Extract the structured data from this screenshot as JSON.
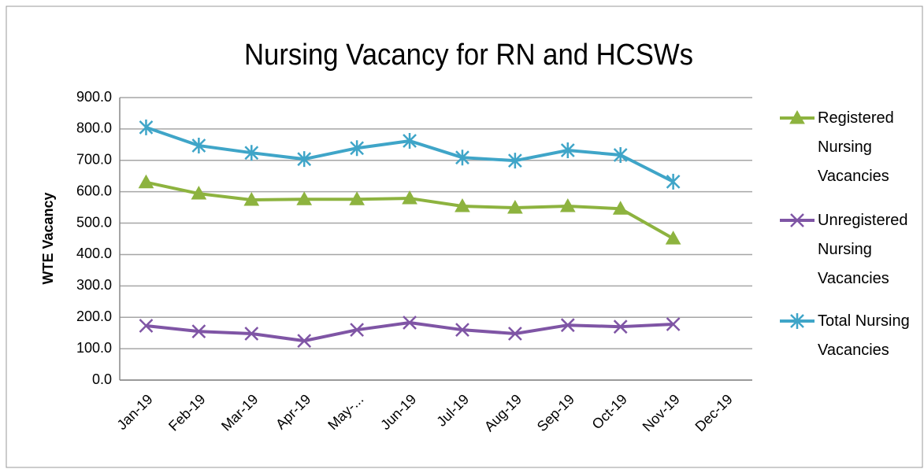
{
  "chart_data": {
    "type": "line",
    "title": "Nursing Vacancy for RN and HCSWs",
    "y_label": "WTE Vacancy",
    "categories": [
      "Jan-19",
      "Feb-19",
      "Mar-19",
      "Apr-19",
      "May-...",
      "Jun-19",
      "Jul-19",
      "Aug-19",
      "Sep-19",
      "Oct-19",
      "Nov-19",
      "Dec-19"
    ],
    "series": [
      {
        "name": "Registered Nursing Vacancies",
        "color": "#8db33f",
        "marker": "triangle",
        "values": [
          630,
          594,
          574,
          576,
          576,
          579,
          554,
          549,
          554,
          546,
          451,
          null
        ]
      },
      {
        "name": "Unregistered Nursing Vacancies",
        "color": "#7f55a5",
        "marker": "x",
        "values": [
          173,
          155,
          148,
          125,
          160,
          183,
          160,
          148,
          175,
          170,
          178,
          null
        ]
      },
      {
        "name": "Total Nursing Vacancies",
        "color": "#3fa5c8",
        "marker": "star",
        "values": [
          805,
          747,
          724,
          704,
          739,
          762,
          709,
          699,
          732,
          717,
          632,
          null
        ]
      }
    ],
    "ylim": [
      0,
      900
    ],
    "yticks": [
      {
        "value": 0,
        "label": "0.0"
      },
      {
        "value": 100,
        "label": "100.0"
      },
      {
        "value": 200,
        "label": "200.0"
      },
      {
        "value": 300,
        "label": "300.0"
      },
      {
        "value": 400,
        "label": "400.0"
      },
      {
        "value": 500,
        "label": "500.0"
      },
      {
        "value": 600,
        "label": "600.0"
      },
      {
        "value": 700,
        "label": "700.0"
      },
      {
        "value": 800,
        "label": "800.0"
      },
      {
        "value": 900,
        "label": "900.0"
      }
    ],
    "grid": true,
    "legend": "right"
  }
}
